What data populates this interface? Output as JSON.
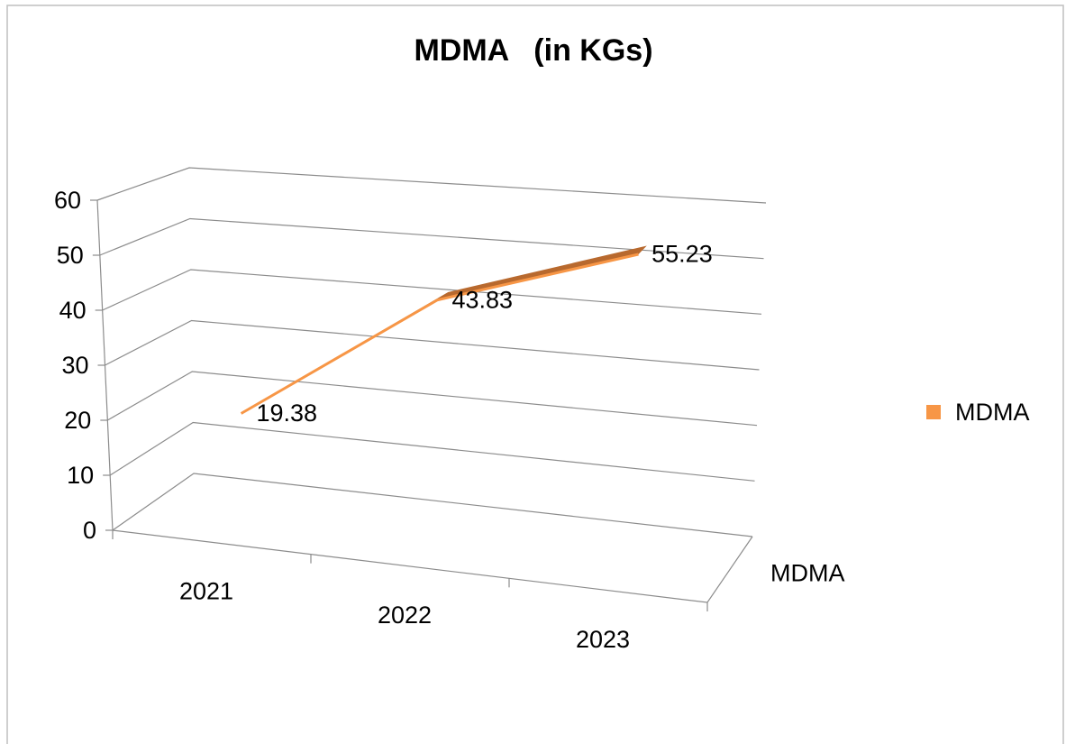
{
  "chart_data": {
    "type": "line3d",
    "title": "MDMA   (in KGs)",
    "categories": [
      "2021",
      "2022",
      "2023"
    ],
    "series": [
      {
        "name": "MDMA",
        "color": "#f79646",
        "values": [
          19.38,
          43.83,
          55.23
        ]
      }
    ],
    "ylim": [
      0,
      60
    ],
    "yticks": [
      0,
      10,
      20,
      30,
      40,
      50,
      60
    ],
    "grid": true,
    "legend": "right"
  }
}
